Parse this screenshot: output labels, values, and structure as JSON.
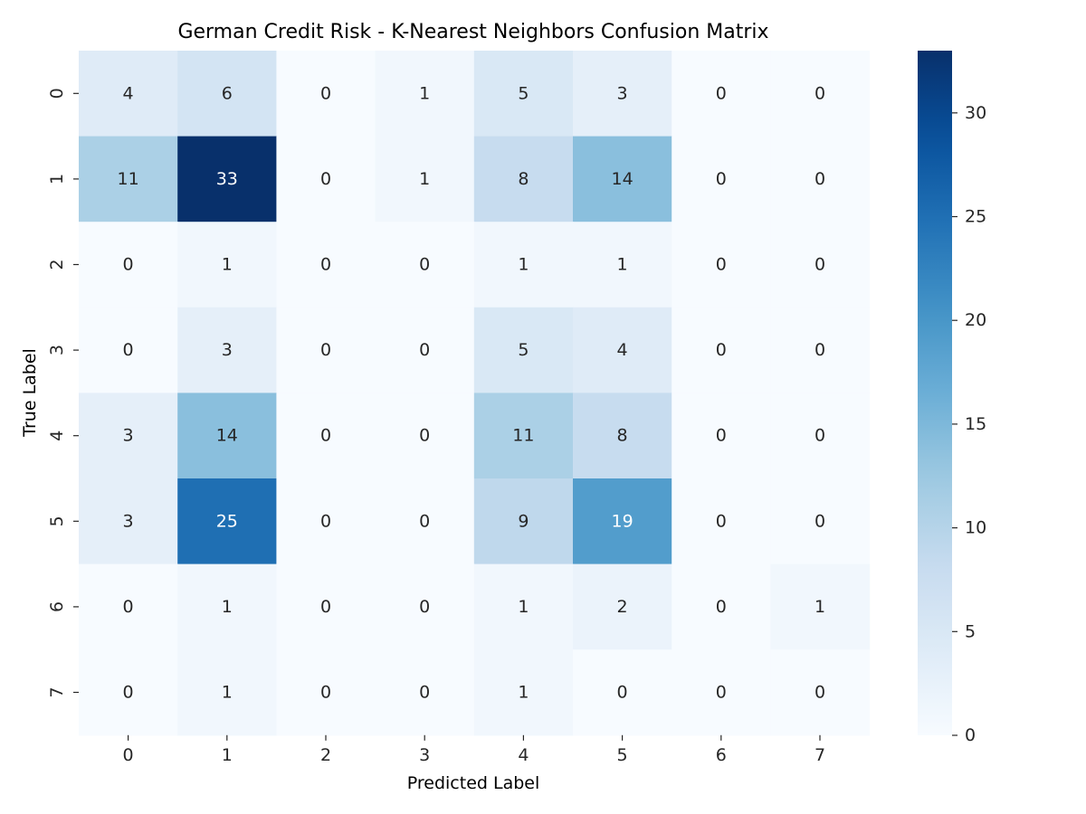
{
  "chart_data": {
    "type": "heatmap",
    "title": "German Credit Risk - K-Nearest Neighbors Confusion Matrix",
    "xlabel": "Predicted Label",
    "ylabel": "True Label",
    "x_categories": [
      "0",
      "1",
      "2",
      "3",
      "4",
      "5",
      "6",
      "7"
    ],
    "y_categories": [
      "0",
      "1",
      "2",
      "3",
      "4",
      "5",
      "6",
      "7"
    ],
    "values": [
      [
        4,
        6,
        0,
        1,
        5,
        3,
        0,
        0
      ],
      [
        11,
        33,
        0,
        1,
        8,
        14,
        0,
        0
      ],
      [
        0,
        1,
        0,
        0,
        1,
        1,
        0,
        0
      ],
      [
        0,
        3,
        0,
        0,
        5,
        4,
        0,
        0
      ],
      [
        3,
        14,
        0,
        0,
        11,
        8,
        0,
        0
      ],
      [
        3,
        25,
        0,
        0,
        9,
        19,
        0,
        0
      ],
      [
        0,
        1,
        0,
        0,
        1,
        2,
        0,
        1
      ],
      [
        0,
        1,
        0,
        0,
        1,
        0,
        0,
        0
      ]
    ],
    "colormap": "Blues",
    "vmin": 0,
    "vmax": 33,
    "colorbar_ticks": [
      0,
      5,
      10,
      15,
      20,
      25,
      30
    ],
    "colorbar_tick_labels": [
      "0",
      "5",
      "10",
      "15",
      "20",
      "25",
      "30"
    ],
    "grid": false
  }
}
